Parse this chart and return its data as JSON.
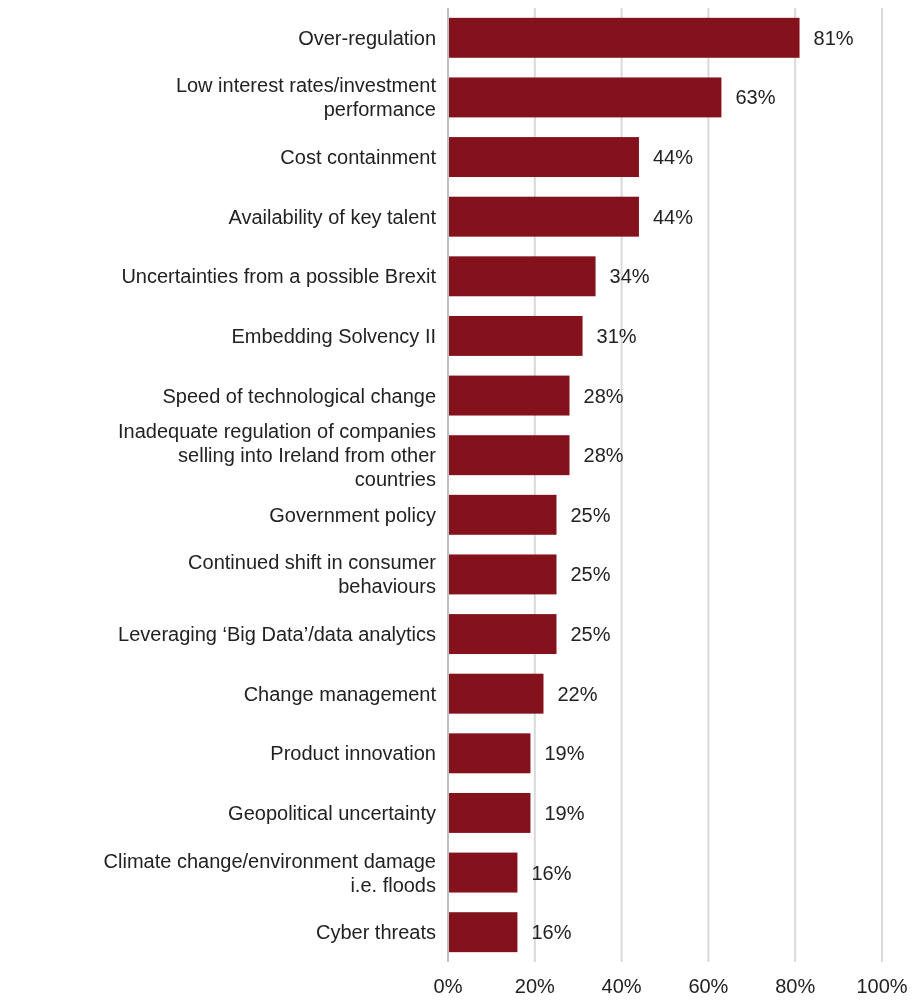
{
  "chart_data": {
    "type": "bar",
    "orientation": "horizontal",
    "categories": [
      "Over-regulation",
      "Low interest rates/investment performance",
      "Cost containment",
      "Availability of key talent",
      "Uncertainties from a possible Brexit",
      "Embedding Solvency II",
      "Speed of technological change",
      "Inadequate regulation of companies selling into Ireland from other countries",
      "Government policy",
      "Continued shift in consumer behaviours",
      "Leveraging ‘Big Data’/data analytics",
      "Change management",
      "Product innovation",
      "Geopolitical uncertainty",
      "Climate change/environment damage i.e. floods",
      "Cyber threats"
    ],
    "values": [
      81,
      63,
      44,
      44,
      34,
      31,
      28,
      28,
      25,
      25,
      25,
      22,
      19,
      19,
      16,
      16
    ],
    "value_labels": [
      "81%",
      "63%",
      "44%",
      "44%",
      "34%",
      "31%",
      "28%",
      "28%",
      "25%",
      "25%",
      "25%",
      "22%",
      "19%",
      "19%",
      "16%",
      "16%"
    ],
    "color": "#84121c",
    "xlim": [
      0,
      100
    ],
    "xticks": [
      {
        "value": 0,
        "label": "0%"
      },
      {
        "value": 20,
        "label": "20%"
      },
      {
        "value": 40,
        "label": "40%"
      },
      {
        "value": 60,
        "label": "60%"
      },
      {
        "value": 80,
        "label": "80%"
      },
      {
        "value": 100,
        "label": "100%"
      }
    ],
    "grid": "x"
  }
}
